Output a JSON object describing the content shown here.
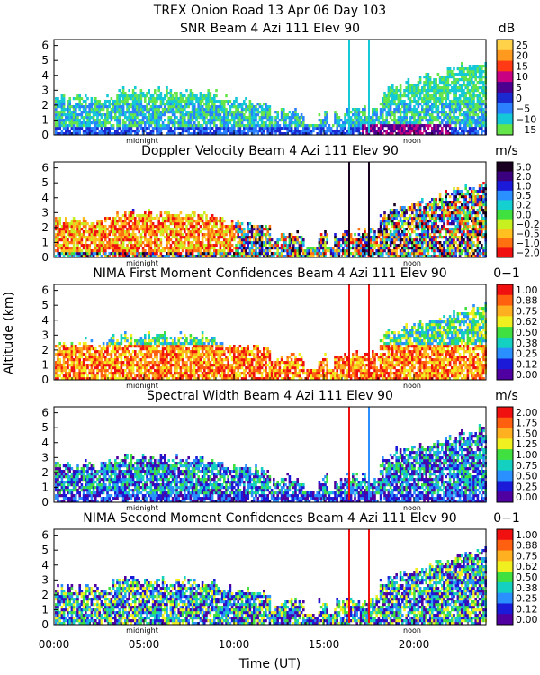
{
  "chart_data": {
    "type": "heatmap",
    "title": "TREX Onion Road  13 Apr 06 Day 103",
    "xlabel": "Time (UT)",
    "ylabel": "Altitude (km)",
    "x_tick_labels": [
      "00:00",
      "05:00",
      "10:00",
      "15:00",
      "20:00"
    ],
    "x_ticks_hours": [
      0,
      5,
      10,
      15,
      20
    ],
    "xlim_hours": [
      0,
      24
    ],
    "y_ticks": [
      0,
      1,
      2,
      3,
      4,
      5,
      6
    ],
    "ylim_km": [
      0,
      6.4
    ],
    "midnight_label": "midnight",
    "noon_label": "noon",
    "midnight_hour": 4.9,
    "noon_hour": 19.9,
    "panels": [
      {
        "title": "SNR Beam 4 Azi 111 Elev 90",
        "unit": "dB",
        "colorbar_labels": [
          "25",
          "20",
          "15",
          "10",
          "5",
          "0",
          "−5",
          "−10",
          "−15"
        ],
        "colors": [
          "#ffd24a",
          "#ff9a1e",
          "#ff3a14",
          "#c80082",
          "#4b0090",
          "#1a2ad0",
          "#2a80ff",
          "#14c8d8",
          "#64e64a"
        ],
        "vmin": -15,
        "vmax": 25
      },
      {
        "title": "Doppler Velocity Beam 4 Azi 111 Elev 90",
        "unit": "m/s",
        "colorbar_labels": [
          "5.0",
          "2.0",
          "1.0",
          "0.5",
          "0.2",
          "0.0",
          "−0.2",
          "−0.5",
          "−1.0",
          "−2.0"
        ],
        "colors": [
          "#1a0020",
          "#3a0080",
          "#1a1ad8",
          "#2a90ff",
          "#14d0d0",
          "#40e040",
          "#c8f020",
          "#ffc020",
          "#ff7010",
          "#f01010"
        ],
        "vmin": -2,
        "vmax": 5
      },
      {
        "title": "NIMA First Moment Confidences Beam 4 Azi 111 Elev 90",
        "unit": "0−1",
        "colorbar_labels": [
          "1.00",
          "0.88",
          "0.75",
          "0.62",
          "0.50",
          "0.38",
          "0.25",
          "0.12",
          "0.00"
        ],
        "colors": [
          "#f01010",
          "#ff6010",
          "#ffb020",
          "#f0f020",
          "#40e040",
          "#14d0c0",
          "#2a90ff",
          "#1a1ad8",
          "#5000a0"
        ],
        "vmin": 0,
        "vmax": 1
      },
      {
        "title": "Spectral Width Beam 4 Azi 111 Elev 90",
        "unit": "m/s",
        "colorbar_labels": [
          "2.00",
          "1.75",
          "1.50",
          "1.25",
          "1.00",
          "0.75",
          "0.50",
          "0.25",
          "0.00"
        ],
        "colors": [
          "#f01010",
          "#ff6010",
          "#ffb020",
          "#f0f020",
          "#40e040",
          "#14d0c0",
          "#2a90ff",
          "#1a1ad8",
          "#5000a0"
        ],
        "vmin": 0,
        "vmax": 2
      },
      {
        "title": "NIMA Second Moment Confidences Beam 4 Azi 111 Elev 90",
        "unit": "0−1",
        "colorbar_labels": [
          "1.00",
          "0.88",
          "0.75",
          "0.62",
          "0.50",
          "0.38",
          "0.25",
          "0.12",
          "0.00"
        ],
        "colors": [
          "#f01010",
          "#ff6010",
          "#ffb020",
          "#f0f020",
          "#40e040",
          "#14d0c0",
          "#2a90ff",
          "#1a1ad8",
          "#5000a0"
        ],
        "vmin": 0,
        "vmax": 1
      }
    ]
  }
}
